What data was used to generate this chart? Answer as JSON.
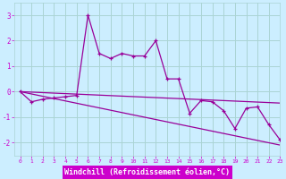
{
  "xlabel": "Windchill (Refroidissement éolien,°C)",
  "background_color": "#cceeff",
  "grid_color": "#aad4d4",
  "line_color": "#990099",
  "axis_bg": "#cc00cc",
  "xlabel_color": "#ffffff",
  "tick_label_color": "#cc00cc",
  "hours": [
    0,
    1,
    2,
    3,
    4,
    5,
    6,
    7,
    8,
    9,
    10,
    11,
    12,
    13,
    14,
    15,
    16,
    17,
    18,
    19,
    20,
    21,
    22,
    23
  ],
  "windchill": [
    0.0,
    -0.4,
    -0.3,
    -0.25,
    -0.2,
    -0.15,
    3.0,
    1.5,
    1.3,
    1.5,
    1.4,
    1.4,
    2.0,
    0.5,
    0.5,
    -0.85,
    -0.35,
    -0.4,
    -0.75,
    -1.45,
    -0.65,
    -0.6,
    -1.3,
    -1.9
  ],
  "trend1_x": [
    0,
    23
  ],
  "trend1_y": [
    0.0,
    -0.45
  ],
  "trend2_x": [
    0,
    23
  ],
  "trend2_y": [
    0.0,
    -2.1
  ],
  "ylim": [
    -2.5,
    3.5
  ],
  "xlim": [
    -0.5,
    23
  ]
}
